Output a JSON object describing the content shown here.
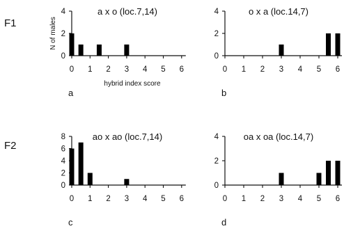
{
  "figure": {
    "row_labels": [
      "F1",
      "F2"
    ]
  },
  "chart_data": [
    {
      "type": "bar",
      "title": "a x o (loc.7,14)",
      "panel_letter": "a",
      "xlabel": "hybrid index score",
      "ylabel": "N of males",
      "xlim": [
        0,
        6
      ],
      "ylim": [
        0,
        4
      ],
      "xticks": [
        0,
        1,
        2,
        3,
        4,
        5,
        6
      ],
      "yticks": [
        0,
        2,
        4
      ],
      "grid": false,
      "series": [
        {
          "x": [
            0,
            0.5,
            1.5,
            3
          ],
          "values": [
            2,
            1,
            1,
            1
          ]
        }
      ]
    },
    {
      "type": "bar",
      "title": "o x a (loc.14,7)",
      "panel_letter": "b",
      "xlabel": "",
      "ylabel": "",
      "xlim": [
        0,
        6
      ],
      "ylim": [
        0,
        4
      ],
      "xticks": [
        0,
        1,
        2,
        3,
        4,
        5,
        6
      ],
      "yticks": [
        0,
        2,
        4
      ],
      "grid": false,
      "series": [
        {
          "x": [
            3,
            5.5,
            6
          ],
          "values": [
            1,
            2,
            2
          ]
        }
      ]
    },
    {
      "type": "bar",
      "title": "ao x ao (loc.7,14)",
      "panel_letter": "c",
      "xlabel": "",
      "ylabel": "",
      "xlim": [
        0,
        6
      ],
      "ylim": [
        0,
        8
      ],
      "xticks": [
        0,
        1,
        2,
        3,
        4,
        5,
        6
      ],
      "yticks": [
        0,
        2,
        4,
        6,
        8
      ],
      "grid": false,
      "series": [
        {
          "x": [
            0,
            0.5,
            1,
            3
          ],
          "values": [
            6,
            7,
            2,
            1
          ]
        }
      ]
    },
    {
      "type": "bar",
      "title": "oa x oa (loc.14,7)",
      "panel_letter": "d",
      "xlabel": "",
      "ylabel": "",
      "xlim": [
        0,
        6
      ],
      "ylim": [
        0,
        4
      ],
      "xticks": [
        0,
        1,
        2,
        3,
        4,
        5,
        6
      ],
      "yticks": [
        0,
        2,
        4
      ],
      "grid": false,
      "series": [
        {
          "x": [
            3,
            5,
            5.5,
            6
          ],
          "values": [
            1,
            1,
            2,
            2
          ]
        }
      ]
    }
  ]
}
